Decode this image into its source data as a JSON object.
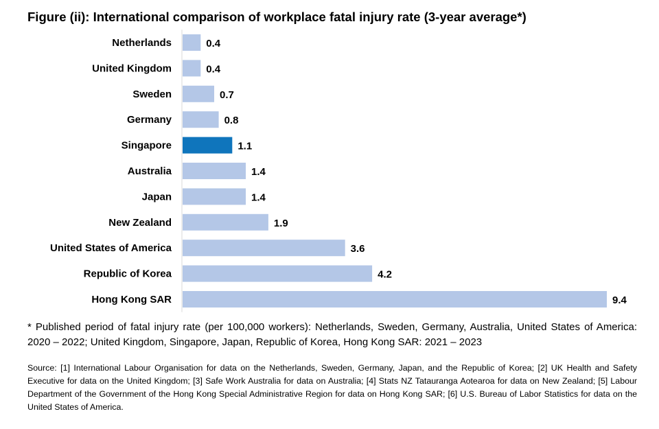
{
  "chart_data": {
    "type": "bar",
    "orientation": "horizontal",
    "title": "Figure (ii): International comparison of workplace fatal injury rate (3-year average*)",
    "categories": [
      "Netherlands",
      "United Kingdom",
      "Sweden",
      "Germany",
      "Singapore",
      "Australia",
      "Japan",
      "New Zealand",
      "United States of America",
      "Republic of Korea",
      "Hong Kong SAR"
    ],
    "values": [
      0.4,
      0.4,
      0.7,
      0.8,
      1.1,
      1.4,
      1.4,
      1.9,
      3.6,
      4.2,
      9.4
    ],
    "value_labels": [
      "0.4",
      "0.4",
      "0.7",
      "0.8",
      "1.1",
      "1.4",
      "1.4",
      "1.9",
      "3.6",
      "4.2",
      "9.4"
    ],
    "highlight_category": "Singapore",
    "xlim": [
      0,
      9.4
    ],
    "grid": false,
    "legend": "none",
    "colors": {
      "bar": "#b4c7e7",
      "highlight": "#0f75bc",
      "axis": "#d9d9d9"
    }
  },
  "footnote": "* Published period of fatal injury rate (per 100,000 workers): Netherlands, Sweden, Germany, Australia, United States of America: 2020 – 2022; United Kingdom, Singapore, Japan, Republic of Korea, Hong Kong SAR: 2021 – 2023",
  "source": "Source: [1] International Labour Organisation for data on the Netherlands, Sweden, Germany, Japan, and the Republic of Korea; [2] UK Health and Safety Executive for data on the United Kingdom; [3] Safe Work Australia for data on Australia; [4] Stats NZ Tatauranga Aotearoa for data on New Zealand; [5] Labour Department of the Government of the Hong Kong Special Administrative Region for data on Hong Kong SAR; [6] U.S. Bureau of Labor Statistics for data on the United States of America."
}
